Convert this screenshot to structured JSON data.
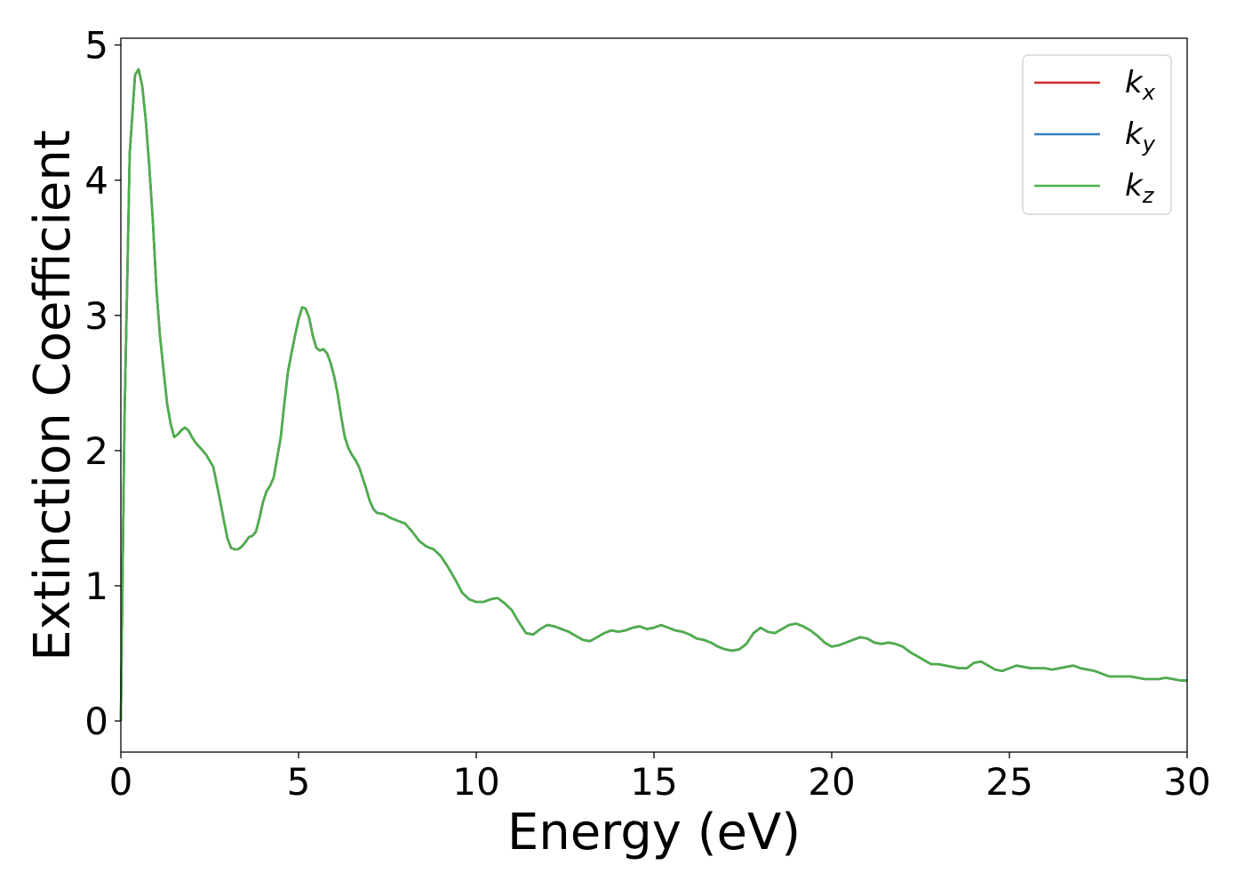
{
  "chart_data": {
    "type": "line",
    "xlabel": "Energy (eV)",
    "ylabel": "Extinction Coefficient",
    "xlim": [
      0,
      30
    ],
    "ylim": [
      -0.23,
      5.05
    ],
    "xticks": [
      0,
      5,
      10,
      15,
      20,
      25,
      30
    ],
    "yticks": [
      0,
      1,
      2,
      3,
      4,
      5
    ],
    "grid": false,
    "legend": {
      "placement": "top-right"
    },
    "series": [
      {
        "name_base": "k",
        "name_sub": "x",
        "color": "#d62728"
      },
      {
        "name_base": "k",
        "name_sub": "y",
        "color": "#377eb8"
      },
      {
        "name_base": "k",
        "name_sub": "z",
        "color": "#4daf4a"
      }
    ],
    "x": [
      0,
      0.1,
      0.25,
      0.4,
      0.5,
      0.6,
      0.7,
      0.8,
      0.9,
      1.0,
      1.1,
      1.2,
      1.3,
      1.4,
      1.5,
      1.6,
      1.7,
      1.8,
      1.9,
      2.0,
      2.1,
      2.2,
      2.4,
      2.6,
      2.8,
      2.9,
      3.0,
      3.1,
      3.2,
      3.3,
      3.4,
      3.5,
      3.6,
      3.7,
      3.8,
      3.9,
      4.0,
      4.1,
      4.2,
      4.3,
      4.4,
      4.5,
      4.6,
      4.7,
      4.8,
      4.9,
      5.0,
      5.1,
      5.2,
      5.3,
      5.4,
      5.5,
      5.6,
      5.7,
      5.8,
      5.9,
      6.0,
      6.1,
      6.2,
      6.3,
      6.4,
      6.5,
      6.6,
      6.7,
      6.8,
      6.9,
      7.0,
      7.1,
      7.2,
      7.4,
      7.6,
      7.8,
      8.0,
      8.2,
      8.4,
      8.6,
      8.8,
      9.0,
      9.2,
      9.4,
      9.6,
      9.8,
      10.0,
      10.2,
      10.4,
      10.6,
      10.8,
      11.0,
      11.2,
      11.4,
      11.6,
      11.8,
      12.0,
      12.2,
      12.4,
      12.6,
      12.8,
      13.0,
      13.2,
      13.4,
      13.6,
      13.8,
      14.0,
      14.2,
      14.4,
      14.6,
      14.8,
      15.0,
      15.2,
      15.4,
      15.6,
      15.8,
      16.0,
      16.2,
      16.4,
      16.6,
      16.8,
      17.0,
      17.2,
      17.4,
      17.6,
      17.8,
      18.0,
      18.2,
      18.4,
      18.6,
      18.8,
      19.0,
      19.2,
      19.4,
      19.6,
      19.8,
      20.0,
      20.2,
      20.4,
      20.6,
      20.8,
      21.0,
      21.2,
      21.4,
      21.6,
      21.8,
      22.0,
      22.2,
      22.4,
      22.6,
      22.8,
      23.0,
      23.2,
      23.4,
      23.6,
      23.8,
      24.0,
      24.2,
      24.4,
      24.6,
      24.8,
      25.0,
      25.2,
      25.4,
      25.6,
      25.8,
      26.0,
      26.2,
      26.4,
      26.6,
      26.8,
      27.0,
      27.2,
      27.4,
      27.6,
      27.8,
      28.0,
      28.2,
      28.4,
      28.6,
      28.8,
      29.0,
      29.2,
      29.4,
      29.6,
      29.8,
      30.0
    ],
    "y": [
      0.0,
      2.2,
      4.2,
      4.78,
      4.82,
      4.7,
      4.45,
      4.1,
      3.7,
      3.2,
      2.85,
      2.6,
      2.35,
      2.2,
      2.1,
      2.12,
      2.15,
      2.17,
      2.15,
      2.1,
      2.06,
      2.03,
      1.97,
      1.88,
      1.62,
      1.48,
      1.35,
      1.28,
      1.27,
      1.27,
      1.29,
      1.32,
      1.36,
      1.37,
      1.4,
      1.5,
      1.62,
      1.7,
      1.74,
      1.8,
      1.95,
      2.1,
      2.35,
      2.58,
      2.72,
      2.85,
      2.97,
      3.06,
      3.05,
      2.98,
      2.85,
      2.76,
      2.74,
      2.75,
      2.72,
      2.65,
      2.55,
      2.42,
      2.25,
      2.1,
      2.02,
      1.97,
      1.93,
      1.88,
      1.8,
      1.72,
      1.63,
      1.57,
      1.54,
      1.53,
      1.5,
      1.48,
      1.46,
      1.4,
      1.33,
      1.29,
      1.27,
      1.22,
      1.14,
      1.05,
      0.95,
      0.9,
      0.88,
      0.88,
      0.9,
      0.91,
      0.87,
      0.82,
      0.73,
      0.65,
      0.64,
      0.68,
      0.71,
      0.7,
      0.68,
      0.66,
      0.63,
      0.6,
      0.59,
      0.62,
      0.65,
      0.67,
      0.66,
      0.67,
      0.69,
      0.7,
      0.68,
      0.69,
      0.71,
      0.69,
      0.67,
      0.66,
      0.64,
      0.61,
      0.6,
      0.58,
      0.55,
      0.53,
      0.52,
      0.53,
      0.57,
      0.65,
      0.69,
      0.66,
      0.65,
      0.68,
      0.71,
      0.72,
      0.7,
      0.67,
      0.63,
      0.58,
      0.55,
      0.56,
      0.58,
      0.6,
      0.62,
      0.61,
      0.58,
      0.57,
      0.58,
      0.57,
      0.55,
      0.51,
      0.48,
      0.45,
      0.42,
      0.42,
      0.41,
      0.4,
      0.39,
      0.39,
      0.43,
      0.44,
      0.41,
      0.38,
      0.37,
      0.39,
      0.41,
      0.4,
      0.39,
      0.39,
      0.39,
      0.38,
      0.39,
      0.4,
      0.41,
      0.39,
      0.38,
      0.37,
      0.35,
      0.33,
      0.33,
      0.33,
      0.33,
      0.32,
      0.31,
      0.31,
      0.31,
      0.32,
      0.31,
      0.3,
      0.3
    ]
  }
}
